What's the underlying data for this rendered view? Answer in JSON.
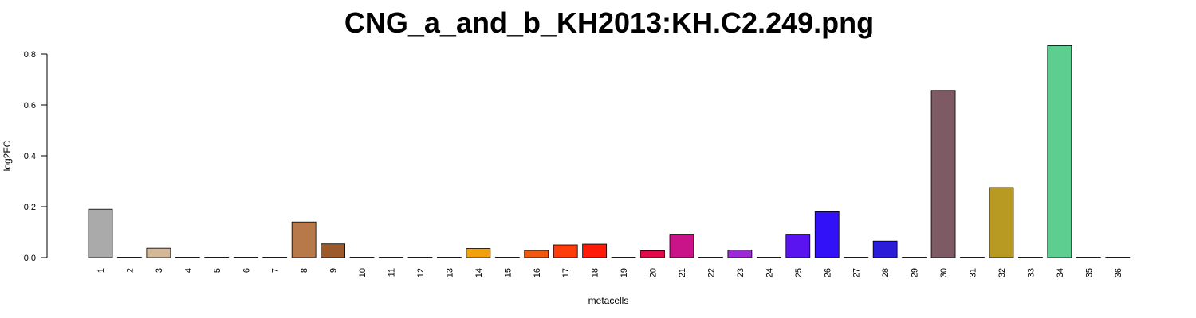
{
  "chart_data": {
    "type": "bar",
    "title": "CNG_a_and_b_KH2013:KH.C2.249.png",
    "xlabel": "metacells",
    "ylabel": "log2FC",
    "ylim": [
      0,
      0.8
    ],
    "yticks": [
      "0.0",
      "0.2",
      "0.4",
      "0.6",
      "0.8"
    ],
    "categories": [
      "1",
      "2",
      "3",
      "4",
      "5",
      "6",
      "7",
      "8",
      "9",
      "10",
      "11",
      "12",
      "13",
      "14",
      "15",
      "16",
      "17",
      "18",
      "19",
      "20",
      "21",
      "22",
      "23",
      "24",
      "25",
      "26",
      "27",
      "28",
      "29",
      "30",
      "31",
      "32",
      "33",
      "34",
      "35",
      "36"
    ],
    "values": [
      0.19,
      0.0,
      0.037,
      0.0,
      0.0,
      0.0,
      0.0,
      0.14,
      0.054,
      0.0,
      0.0,
      0.0,
      0.0,
      0.036,
      0.0,
      0.028,
      0.05,
      0.053,
      0.0,
      0.027,
      0.092,
      0.0,
      0.03,
      0.0,
      0.092,
      0.18,
      0.0,
      0.065,
      0.0,
      0.657,
      0.0,
      0.275,
      0.0,
      0.833,
      0.0,
      0.0
    ],
    "colors": [
      "#AAAAAA",
      "#CCCCCC",
      "#D2B896",
      "#CCCCCC",
      "#CCCCCC",
      "#CCCCCC",
      "#CCCCCC",
      "#B8794A",
      "#9C5A2A",
      "#CCCCCC",
      "#CCCCCC",
      "#CCCCCC",
      "#CCCCCC",
      "#F2A00C",
      "#CCCCCC",
      "#F05A10",
      "#FF3C0C",
      "#FF1A0A",
      "#CCCCCC",
      "#E00A4A",
      "#C81488",
      "#CCCCCC",
      "#9C28D8",
      "#CCCCCC",
      "#5A14F0",
      "#3210F8",
      "#CCCCCC",
      "#2A1CD8",
      "#CCCCCC",
      "#7E5A64",
      "#CCCCCC",
      "#B89A22",
      "#CCCCCC",
      "#5ECE90",
      "#CCCCCC",
      "#CCCCCC"
    ]
  }
}
